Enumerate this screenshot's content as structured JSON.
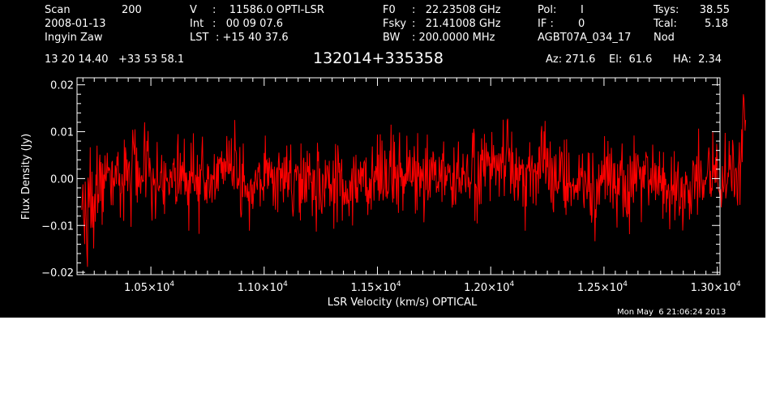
{
  "header": {
    "scan_label": "Scan",
    "scan_value": "200",
    "date": "2008-01-13",
    "observer": "Ingyin Zaw",
    "coords": "13 20 14.40   +33 53 58.1",
    "v_label": "V",
    "v_value": ":    11586.0 OPTI-LSR",
    "int_label": "Int",
    "int_value": ":   00 09 07.6",
    "lst_label": "LST",
    "lst_value": ": +15 40 37.6",
    "f0_label": "F0",
    "f0_value": ":   22.23508 GHz",
    "fsky_label": "Fsky",
    "fsky_value": ":   21.41008 GHz",
    "bw_label": "BW",
    "bw_value": ": 200.0000 MHz",
    "pol_label": "Pol:",
    "pol_value": "I",
    "if_label": "IF :",
    "if_value": "0",
    "project": "AGBT07A_034_17",
    "tsys_label": "Tsys:",
    "tsys_value": "38.55",
    "tcal_label": "Tcal:",
    "tcal_value": "5.18",
    "mode": "Nod",
    "source": "132014+335358",
    "az": "Az: 271.6",
    "el": "El:  61.6",
    "ha": "HA:  2.34",
    "timestamp": "Mon May  6 21:06:24 2013"
  },
  "chart_data": {
    "type": "line",
    "xlabel": "LSR Velocity (km/s) OPTICAL",
    "ylabel": "Flux Density (Jy)",
    "xlim": [
      10174,
      13012
    ],
    "ylim": [
      -0.0205,
      0.0215
    ],
    "grid": false,
    "line_color": "#ff0000",
    "x_ticks": [
      {
        "value": 10500,
        "label": "1.05×10",
        "exp": "4"
      },
      {
        "value": 11000,
        "label": "1.10×10",
        "exp": "4"
      },
      {
        "value": 11500,
        "label": "1.15×10",
        "exp": "4"
      },
      {
        "value": 12000,
        "label": "1.20×10",
        "exp": "4"
      },
      {
        "value": 12500,
        "label": "1.25×10",
        "exp": "4"
      },
      {
        "value": 13000,
        "label": "1.30×10",
        "exp": "4"
      }
    ],
    "y_ticks": [
      {
        "value": -0.02,
        "label": "−0.02"
      },
      {
        "value": -0.01,
        "label": "−0.01"
      },
      {
        "value": 0.0,
        "label": "0.00"
      },
      {
        "value": 0.01,
        "label": "0.01"
      },
      {
        "value": 0.02,
        "label": "0.02"
      }
    ],
    "series": [
      {
        "x_start": 10195,
        "x_step": 10,
        "values": [
          0.0006,
          -0.0083,
          -0.0116,
          -0.0065,
          -0.0027,
          -0.0068,
          -0.0016,
          0.0032,
          -0.0014,
          -0.0027,
          -0.0016,
          0.0004,
          0.0028,
          0.0008,
          -0.0012,
          0.0012,
          0.0026,
          0.0003,
          -0.0008,
          0.0028,
          0.0034,
          0.0017,
          -0.001,
          0.0018,
          0.0015,
          0.0004,
          -0.0009,
          0.0025,
          0.0022,
          0.0035,
          0.0008,
          -0.0011,
          -0.0,
          -0.0021,
          0.0005,
          -0.0006,
          -0.0002,
          -0.0017,
          0.0009,
          -0.0005,
          -0.0007,
          0.0004,
          0.0017,
          -0.001,
          0.0021,
          0.0001,
          0.0015,
          -0.0037,
          0.0006,
          -0.0011,
          -0.0004,
          -0.0012,
          0.0002,
          0.0033,
          -0.0002,
          0.0016,
          0.0004,
          -0.0002,
          0.0012,
          -0.0009,
          0.0001,
          0.0003,
          0.0025,
          -0.0004,
          0.0032,
          0.0024,
          0.0008,
          0.0027,
          0.0039,
          0.0001,
          -0.0006,
          -0.0009,
          -0.0002,
          0.0003,
          -0.0027,
          0.0014,
          0.0007,
          -0.001,
          0.0016,
          -0.0007,
          0.0002,
          -0.0007,
          0.0012,
          -0.0001,
          0.0013,
          -0.0001,
          -0.0012,
          0.0012,
          0.0018,
          0.0002,
          -0.0001,
          -0.0001,
          -0.0013,
          -0.0012,
          0.0012,
          -0.0026,
          0.0003,
          -0.0017,
          -0.0007,
          -0.001,
          0.0006,
          -0.0004,
          -0.001,
          -0.0016,
          0.0017,
          -0.0018,
          -0.0015,
          -0.0022,
          0.0001,
          -0.0002,
          -0.0004,
          -0.0031,
          -0.0012,
          0.0006,
          0.0002,
          -0.0012,
          -0.0022,
          -0.0003,
          0.0001,
          -0.0017,
          0.0009,
          -0.0022,
          0.0016,
          -0.0013,
          -0.0014,
          0.0009,
          -0.0013,
          0.0009,
          -0.0,
          -0.0001,
          -0.0012,
          0.0011,
          0.002,
          0.0002,
          -0.0014,
          0.0016,
          -0.0005,
          0.0017,
          0.0001,
          0.0016,
          0.0002,
          0.0001,
          -0.0001,
          0.0002,
          0.0023,
          -0.0003,
          0.0013,
          -0.0005,
          -0.0004,
          0.0,
          0.0012,
          0.0001,
          -0.0004,
          0.0011,
          0.0,
          0.0026,
          -0.0003,
          -0.0005,
          0.001,
          -0.0011,
          -0.0001,
          -0.0019,
          -0.0006,
          0.0019,
          0.0001,
          -0.0008,
          0.0007,
          -0.0001,
          0.0007,
          0.002,
          -0.0002,
          0.0011,
          0.0015,
          0.0022,
          0.0007,
          0.0016,
          -0.0006,
          0.0031,
          0.0014,
          0.0021,
          0.0027,
          0.0042,
          0.0006,
          0.0027,
          0.001,
          0.0002,
          0.0012,
          0.0023,
          0.0039,
          0.0004,
          0.0018,
          0.0003,
          0.0026,
          0.0009,
          0.0018,
          0.0013,
          0.0016,
          0.0006,
          0.0017,
          -0.0005,
          0.0018,
          0.0008,
          0.0017,
          0.0035,
          0.0005,
          0.0006,
          0.0006,
          0.001,
          0.0013,
          0.0015,
          -0.0015,
          0.0019,
          0.0025,
          -0.0019,
          0.0,
          -0.0007,
          -0.0004,
          -0.0014,
          -0.0013,
          -0.0014,
          0.0004,
          -0.0015,
          -0.0014,
          -0.0002,
          0.0013,
          -0.0012,
          -0.0027,
          -0.0022,
          -0.0016,
          0.0002,
          0.0005,
          -0.0002,
          0.0004,
          -0.0005,
          -0.0005,
          -0.0015,
          -0.0009,
          -0.0017,
          0.0016,
          -0.0034,
          -0.0013,
          -0.001,
          -0.0027,
          0.0012,
          0.0023,
          0.0004,
          0.0022,
          0.0004,
          -0.0003,
          0.0015,
          0.0018,
          -0.0007,
          0.0012,
          -0.0013,
          -0.0006,
          0.0,
          -0.0004,
          -0.0006,
          -0.0018,
          -0.0017,
          -0.0012,
          0.0001,
          0.0002,
          -0.0005,
          -0.0018,
          -0.0015,
          -0.001,
          -0.0013,
          -0.0018,
          0.0003,
          -0.0,
          -0.0014,
          -0.0005,
          0.0013,
          -0.0006,
          -0.0005,
          0.0034,
          0.0022,
          0.0007,
          0.0013,
          0.0018,
          0.0005,
          -0.0012,
          -0.0,
          0.0001,
          0.0008,
          0.0008,
          0.0009,
          0.0017,
          0.0017,
          0.0006,
          0.0042,
          0.0135,
          0.0125
        ]
      }
    ]
  }
}
